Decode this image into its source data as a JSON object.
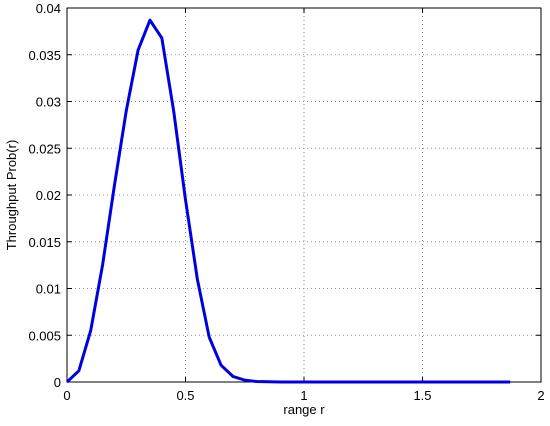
{
  "chart_data": {
    "type": "line",
    "x_label": "range r",
    "y_label": "Throughput Prob(r)",
    "x": [
      0,
      0.05,
      0.1,
      0.15,
      0.2,
      0.25,
      0.3,
      0.35,
      0.4,
      0.45,
      0.5,
      0.55,
      0.6,
      0.65,
      0.7,
      0.75,
      0.8,
      0.9,
      1.0,
      1.5,
      1.87
    ],
    "series": [
      {
        "color": "#0000e0",
        "values": [
          0,
          0.0012,
          0.0055,
          0.0125,
          0.021,
          0.029,
          0.0355,
          0.0387,
          0.0368,
          0.029,
          0.0195,
          0.011,
          0.0048,
          0.0018,
          0.0006,
          0.0002,
          5e-05,
          0,
          0,
          0,
          0
        ]
      }
    ],
    "xlim": [
      0,
      2
    ],
    "xticks": [
      0,
      0.5,
      1,
      1.5,
      2
    ],
    "ylim": [
      0,
      0.04
    ],
    "yticks": [
      0,
      0.005,
      0.01,
      0.015,
      0.02,
      0.025,
      0.03,
      0.035,
      0.04
    ],
    "grid": true
  }
}
